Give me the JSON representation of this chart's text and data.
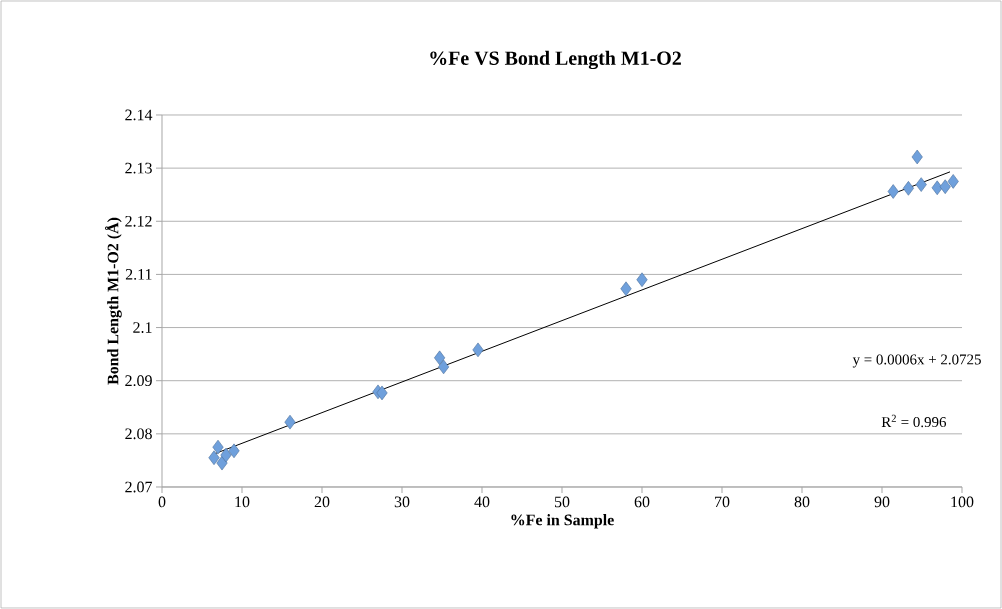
{
  "chart_data": {
    "type": "scatter",
    "title": "%Fe VS Bond Length M1-O2",
    "xlabel": "%Fe in Sample",
    "ylabel": "Bond Length M1-O2 (Å)",
    "series": [
      {
        "color": "#6fa0dc",
        "marker": "diamond",
        "x": [
          6.5,
          7.0,
          7.5,
          8.0,
          9.0,
          16.0,
          27.0,
          27.5,
          34.7,
          35.2,
          39.5,
          58.0,
          60.0,
          91.4,
          93.3,
          94.4,
          94.9,
          96.9,
          97.9,
          98.9
        ],
        "values": [
          2.0755,
          2.0775,
          2.0745,
          2.076,
          2.0768,
          2.0822,
          2.0879,
          2.0877,
          2.0943,
          2.0926,
          2.0958,
          2.1073,
          2.109,
          2.1256,
          2.1262,
          2.1321,
          2.1269,
          2.1263,
          2.1265,
          2.1275
        ]
      },
      {
        "type": "line",
        "color": "#000000",
        "marker": "none",
        "x": [
          6.5,
          98.5
        ],
        "values": [
          2.0762,
          2.1293
        ]
      }
    ],
    "xlim": [
      0,
      100
    ],
    "ylim": [
      2.07,
      2.14
    ],
    "xticks": [
      0,
      10,
      20,
      30,
      40,
      50,
      60,
      70,
      80,
      90,
      100
    ],
    "yticks": [
      2.07,
      2.08,
      2.09,
      {
        "value": 2.1,
        "label": "2.1"
      },
      2.11,
      2.12,
      2.13,
      2.14
    ],
    "grid": "y",
    "annotations": [
      "y = 0.0006x + 2.0725",
      "R$^{2}$ = 0.996"
    ]
  }
}
